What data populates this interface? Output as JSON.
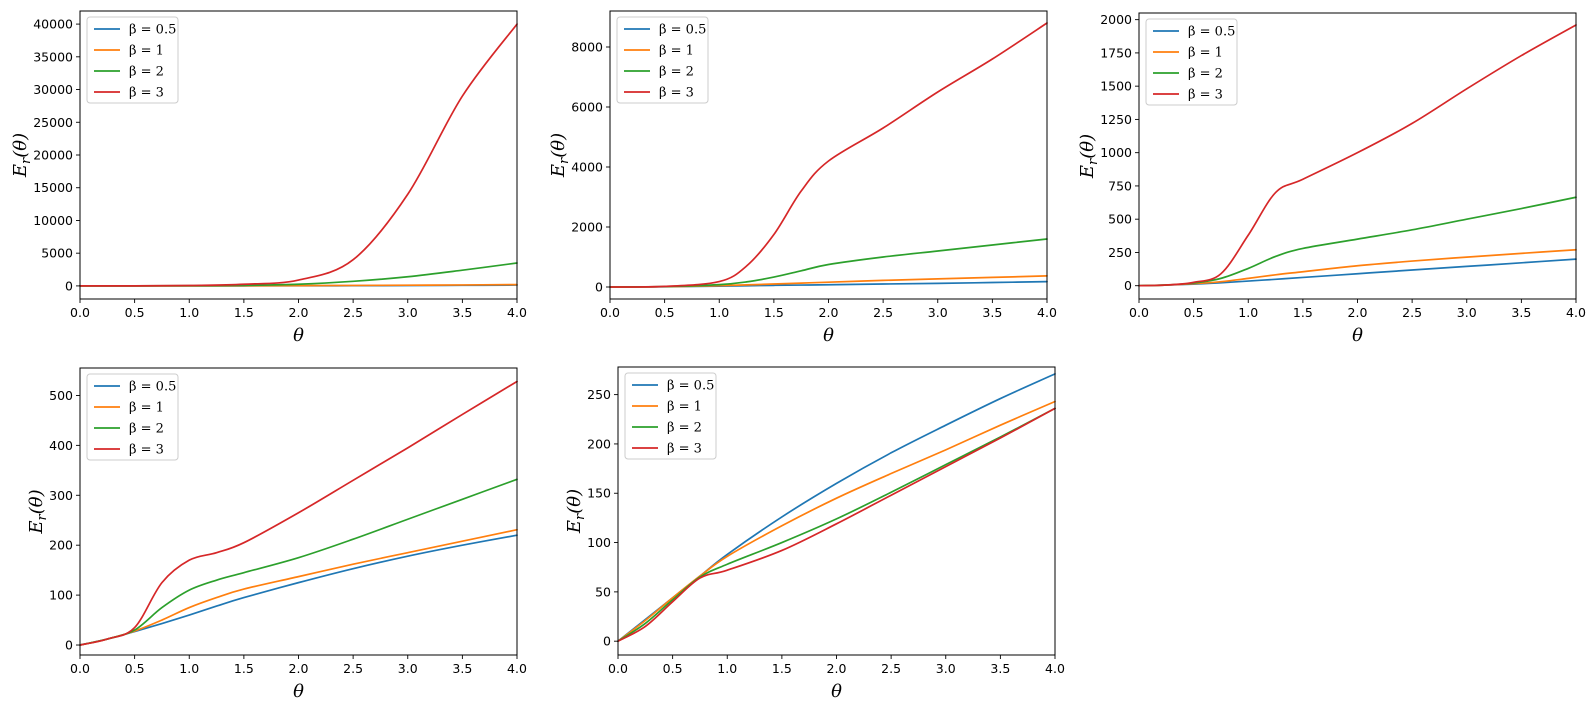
{
  "chart_data": [
    {
      "type": "line",
      "title": "",
      "xlabel": "θ",
      "ylabel": "E_r(θ)",
      "xlim": [
        0,
        4
      ],
      "ylim": [
        -2000,
        42000
      ],
      "xticks": [
        0.0,
        0.5,
        1.0,
        1.5,
        2.0,
        2.5,
        3.0,
        3.5,
        4.0
      ],
      "yticks": [
        0,
        5000,
        10000,
        15000,
        20000,
        25000,
        30000,
        35000,
        40000
      ],
      "legend": "top-left",
      "x": [
        0,
        0.5,
        1,
        1.5,
        2,
        2.5,
        3,
        3.5,
        4
      ],
      "series": [
        {
          "name": "β = 0.5",
          "color": "#1f77b4",
          "values": [
            0,
            2,
            5,
            10,
            20,
            35,
            55,
            90,
            130
          ]
        },
        {
          "name": "β = 1",
          "color": "#ff7f0e",
          "values": [
            0,
            3,
            8,
            20,
            40,
            70,
            110,
            150,
            200
          ]
        },
        {
          "name": "β = 2",
          "color": "#2ca02c",
          "values": [
            0,
            5,
            30,
            80,
            250,
            700,
            1400,
            2400,
            3500
          ]
        },
        {
          "name": "β = 3",
          "color": "#d62728",
          "values": [
            0,
            10,
            70,
            250,
            900,
            4000,
            14000,
            29000,
            40000
          ]
        }
      ]
    },
    {
      "type": "line",
      "title": "",
      "xlabel": "θ",
      "ylabel": "E_r(θ)",
      "xlim": [
        0,
        4
      ],
      "ylim": [
        -400,
        9200
      ],
      "xticks": [
        0.0,
        0.5,
        1.0,
        1.5,
        2.0,
        2.5,
        3.0,
        3.5,
        4.0
      ],
      "yticks": [
        0,
        2000,
        4000,
        6000,
        8000
      ],
      "legend": "top-left",
      "x": [
        0,
        0.5,
        1,
        1.25,
        1.5,
        1.75,
        2,
        2.5,
        3,
        3.5,
        4
      ],
      "series": [
        {
          "name": "β = 0.5",
          "color": "#1f77b4",
          "values": [
            0,
            8,
            30,
            40,
            55,
            65,
            75,
            100,
            120,
            150,
            180
          ]
        },
        {
          "name": "β = 1",
          "color": "#ff7f0e",
          "values": [
            0,
            10,
            45,
            70,
            100,
            130,
            160,
            220,
            270,
            320,
            370
          ]
        },
        {
          "name": "β = 2",
          "color": "#2ca02c",
          "values": [
            0,
            15,
            80,
            170,
            330,
            540,
            750,
            1000,
            1200,
            1400,
            1600
          ]
        },
        {
          "name": "β = 3",
          "color": "#d62728",
          "values": [
            0,
            20,
            180,
            700,
            1750,
            3200,
            4200,
            5300,
            6500,
            7600,
            8800
          ]
        }
      ]
    },
    {
      "type": "line",
      "title": "",
      "xlabel": "θ",
      "ylabel": "E_r(θ)",
      "xlim": [
        0,
        4
      ],
      "ylim": [
        -100,
        2050
      ],
      "xticks": [
        0.0,
        0.5,
        1.0,
        1.5,
        2.0,
        2.5,
        3.0,
        3.5,
        4.0
      ],
      "yticks": [
        0,
        250,
        500,
        750,
        1000,
        1250,
        1500,
        1750,
        2000
      ],
      "legend": "top-left",
      "x": [
        0,
        0.25,
        0.5,
        0.75,
        1,
        1.25,
        1.5,
        2,
        2.5,
        3,
        3.5,
        4
      ],
      "series": [
        {
          "name": "β = 0.5",
          "color": "#1f77b4",
          "values": [
            0,
            5,
            12,
            22,
            35,
            48,
            62,
            90,
            118,
            145,
            172,
            200
          ]
        },
        {
          "name": "β = 1",
          "color": "#ff7f0e",
          "values": [
            0,
            5,
            15,
            30,
            55,
            82,
            105,
            150,
            185,
            215,
            243,
            270
          ]
        },
        {
          "name": "β = 2",
          "color": "#2ca02c",
          "values": [
            0,
            5,
            20,
            55,
            130,
            220,
            280,
            350,
            420,
            500,
            580,
            665
          ]
        },
        {
          "name": "β = 3",
          "color": "#d62728",
          "values": [
            0,
            5,
            25,
            90,
            380,
            700,
            800,
            1000,
            1220,
            1480,
            1730,
            1960
          ]
        }
      ]
    },
    {
      "type": "line",
      "title": "",
      "xlabel": "θ",
      "ylabel": "E_r(θ)",
      "xlim": [
        0,
        4
      ],
      "ylim": [
        -20,
        555
      ],
      "xticks": [
        0.0,
        0.5,
        1.0,
        1.5,
        2.0,
        2.5,
        3.0,
        3.5,
        4.0
      ],
      "yticks": [
        0,
        100,
        200,
        300,
        400,
        500
      ],
      "legend": "top-left",
      "x": [
        0,
        0.25,
        0.5,
        0.75,
        1,
        1.25,
        1.5,
        2,
        2.5,
        3,
        3.5,
        4
      ],
      "series": [
        {
          "name": "β = 0.5",
          "color": "#1f77b4",
          "values": [
            0,
            12,
            27,
            43,
            60,
            78,
            95,
            125,
            153,
            178,
            200,
            220
          ]
        },
        {
          "name": "β = 1",
          "color": "#ff7f0e",
          "values": [
            0,
            12,
            28,
            50,
            75,
            95,
            112,
            137,
            162,
            185,
            208,
            231
          ]
        },
        {
          "name": "β = 2",
          "color": "#2ca02c",
          "values": [
            0,
            12,
            30,
            75,
            110,
            130,
            145,
            175,
            212,
            252,
            292,
            332
          ]
        },
        {
          "name": "β = 3",
          "color": "#d62728",
          "values": [
            0,
            12,
            35,
            125,
            170,
            185,
            205,
            265,
            330,
            395,
            462,
            528
          ]
        }
      ]
    },
    {
      "type": "line",
      "title": "",
      "xlabel": "θ",
      "ylabel": "E_r(θ)",
      "xlim": [
        0,
        4
      ],
      "ylim": [
        -14,
        278
      ],
      "xticks": [
        0.0,
        0.5,
        1.0,
        1.5,
        2.0,
        2.5,
        3.0,
        3.5,
        4.0
      ],
      "yticks": [
        0,
        50,
        100,
        150,
        200,
        250
      ],
      "legend": "top-left",
      "x": [
        0,
        0.25,
        0.5,
        0.75,
        1,
        1.5,
        2,
        2.5,
        3,
        3.5,
        4
      ],
      "series": [
        {
          "name": "β = 0.5",
          "color": "#1f77b4",
          "values": [
            0,
            22,
            44,
            66,
            88,
            126,
            160,
            191,
            219,
            246,
            271
          ]
        },
        {
          "name": "β = 1",
          "color": "#ff7f0e",
          "values": [
            0,
            21,
            44,
            66,
            86,
            117,
            145,
            170,
            194,
            219,
            243
          ]
        },
        {
          "name": "β = 2",
          "color": "#2ca02c",
          "values": [
            0,
            18,
            42,
            65,
            78,
            100,
            124,
            151,
            179,
            207,
            236
          ]
        },
        {
          "name": "β = 3",
          "color": "#d62728",
          "values": [
            0,
            15,
            40,
            64,
            72,
            92,
            119,
            148,
            177,
            206,
            236
          ]
        }
      ]
    }
  ]
}
